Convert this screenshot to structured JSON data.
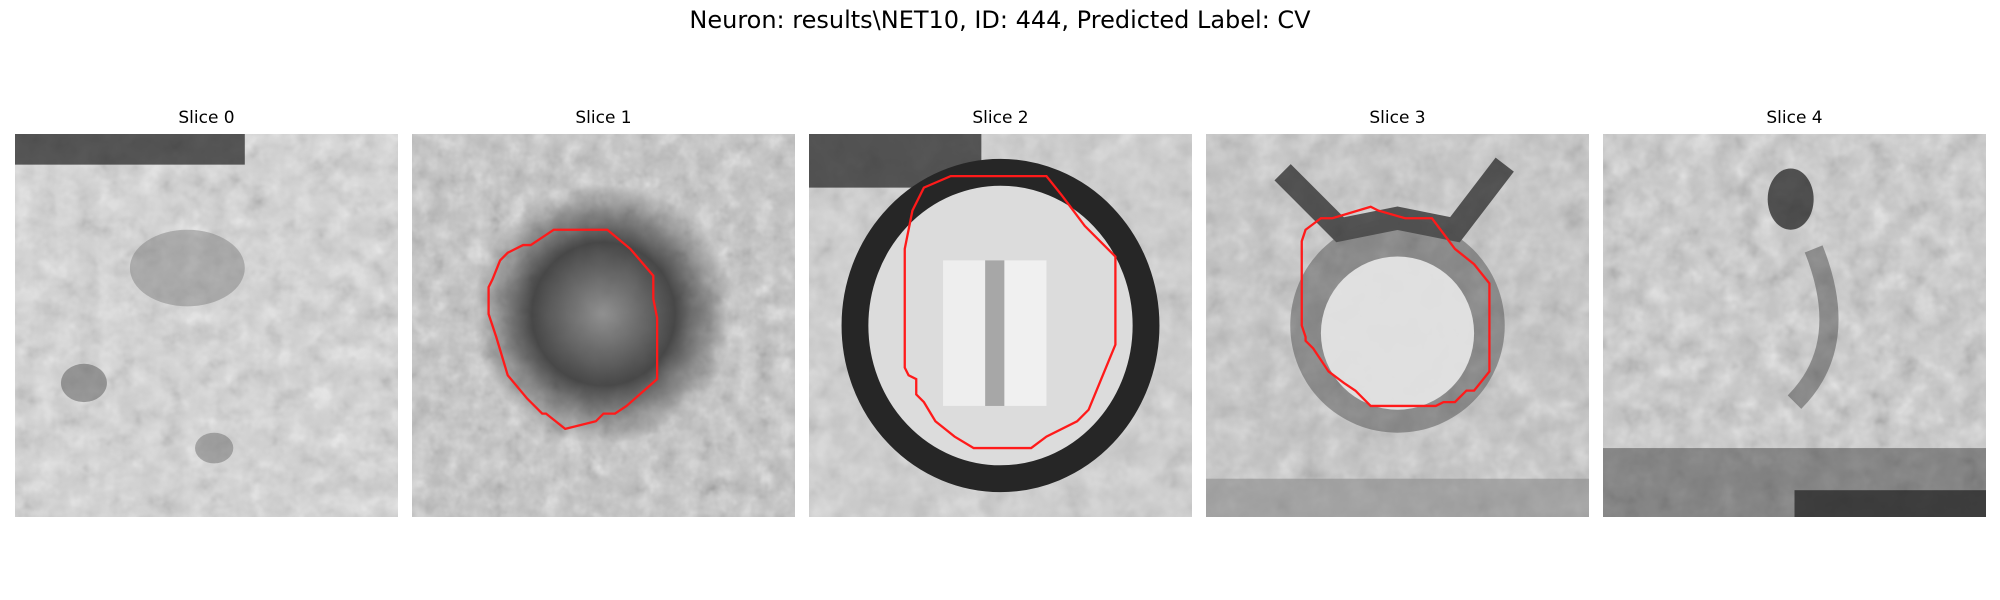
{
  "figure": {
    "title": "Neuron: results\\NET10, ID: 444, Predicted Label: CV"
  },
  "panels": [
    {
      "title": "Slice 0",
      "has_contour": false
    },
    {
      "title": "Slice 1",
      "has_contour": true
    },
    {
      "title": "Slice 2",
      "has_contour": true
    },
    {
      "title": "Slice 3",
      "has_contour": true
    },
    {
      "title": "Slice 4",
      "has_contour": false
    }
  ],
  "colors": {
    "contour": "#ff1a1a",
    "background": "#ffffff"
  }
}
